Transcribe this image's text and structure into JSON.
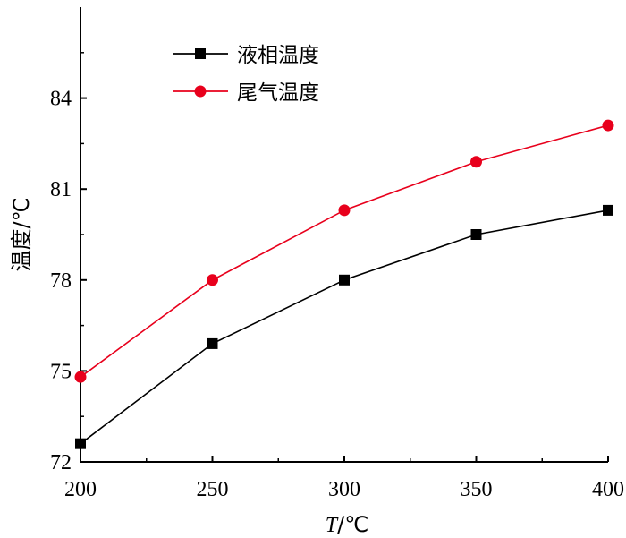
{
  "chart_data": {
    "type": "line",
    "x": [
      200,
      250,
      300,
      350,
      400
    ],
    "xlim": [
      200,
      400
    ],
    "ylim": [
      72,
      87
    ],
    "xticks": [
      "200",
      "250",
      "300",
      "350",
      "400"
    ],
    "yticks": [
      "72",
      "75",
      "78",
      "81",
      "84"
    ],
    "xlabel_italic": "T",
    "xlabel_unit": "/℃",
    "ylabel": "温度/℃",
    "grid": false,
    "legend_position": "top-left",
    "series": [
      {
        "name": "液相温度",
        "values": [
          72.6,
          75.9,
          78.0,
          79.5,
          80.3
        ],
        "color": "#000000",
        "marker": "square"
      },
      {
        "name": "尾气温度",
        "values": [
          74.8,
          78.0,
          80.3,
          81.9,
          83.1
        ],
        "color": "#e8001c",
        "marker": "circle"
      }
    ]
  }
}
